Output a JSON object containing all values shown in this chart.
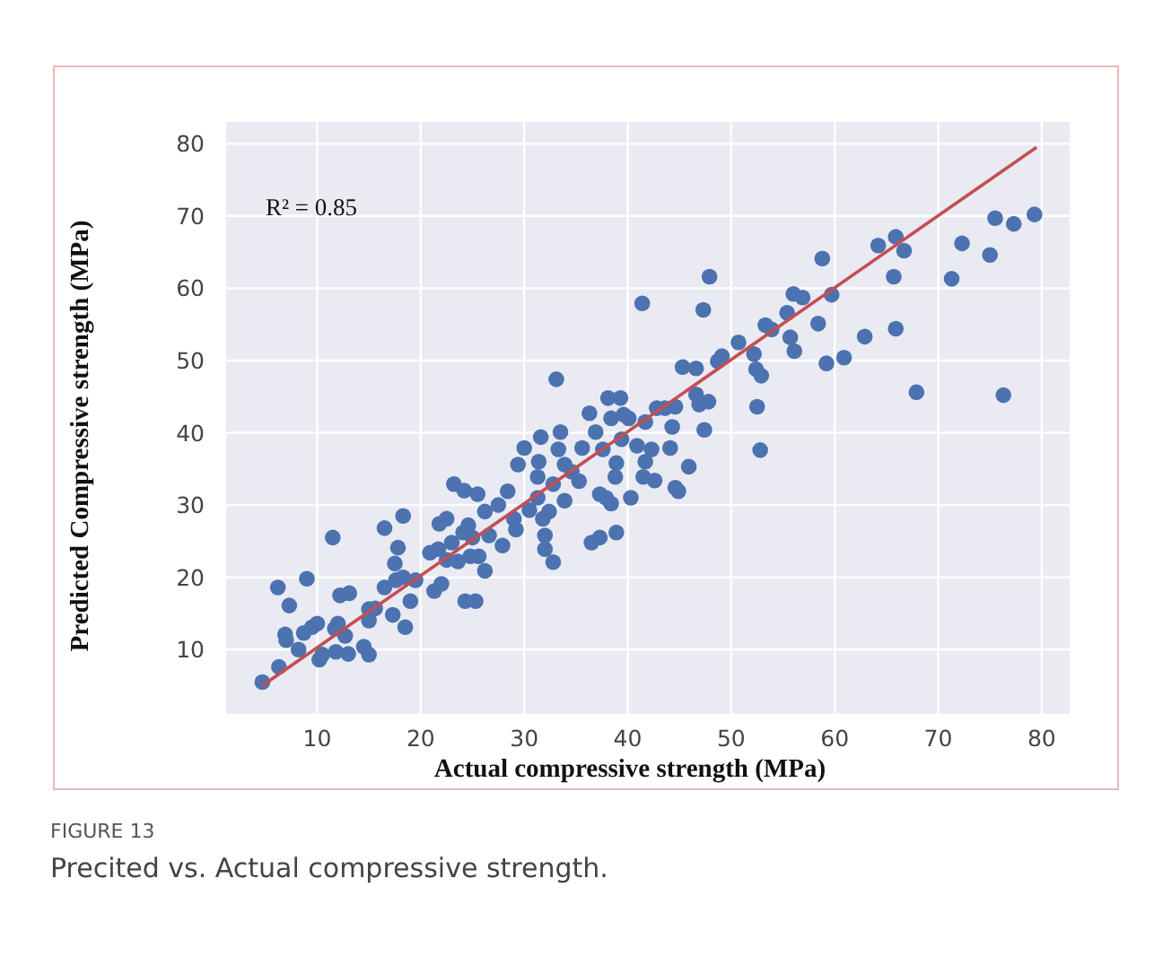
{
  "chart_data": {
    "type": "scatter",
    "xlabel": "Actual compressive strength (MPa)",
    "ylabel": "Predicted Compressive strength (MPa)",
    "annotations": [
      "R² = 0.85",
      "FIGURE 13",
      "Precited vs. Actual compressive strength."
    ],
    "xlim": [
      1.2,
      82.7
    ],
    "ylim": [
      1.1,
      83
    ],
    "xticks": [
      10,
      20,
      30,
      40,
      50,
      60,
      70,
      80
    ],
    "yticks": [
      10,
      20,
      30,
      40,
      50,
      60,
      70,
      80
    ],
    "grid": true,
    "series": [
      {
        "color": "#4c72b0",
        "marker": "circle",
        "x": [
          4.7,
          6.2,
          6.3,
          7.3,
          6.9,
          7.0,
          8.2,
          9.0,
          8.7,
          9.5,
          10.0,
          10.2,
          10.5,
          11.5,
          11.7,
          12.0,
          12.2,
          13.1,
          11.8,
          13.0,
          12.7,
          14.5,
          15.0,
          15.0,
          15.0,
          15.6,
          16.5,
          16.5,
          17.3,
          17.5,
          17.8,
          18.3,
          17.6,
          18.3,
          18.5,
          19.0,
          19.5,
          20.9,
          21.3,
          21.7,
          22.0,
          21.8,
          22.5,
          22.5,
          23.0,
          23.2,
          23.6,
          24.2,
          24.1,
          24.3,
          25.3,
          24.6,
          25.0,
          24.8,
          25.5,
          25.6,
          26.2,
          26.2,
          26.6,
          27.5,
          27.9,
          28.4,
          29.0,
          29.2,
          29.4,
          30.0,
          30.5,
          31.3,
          31.6,
          31.4,
          31.3,
          31.8,
          32.0,
          32.0,
          32.8,
          32.4,
          33.1,
          33.5,
          33.3,
          32.8,
          33.9,
          33.9,
          34.6,
          35.3,
          35.6,
          36.3,
          36.5,
          37.3,
          36.9,
          37.3,
          37.9,
          38.4,
          37.6,
          38.1,
          38.4,
          38.9,
          38.8,
          38.9,
          39.3,
          39.4,
          39.6,
          40.1,
          40.3,
          40.9,
          41.4,
          41.5,
          41.7,
          41.7,
          42.3,
          42.6,
          42.8,
          43.6,
          44.3,
          44.1,
          44.6,
          44.9,
          44.6,
          45.3,
          45.9,
          46.6,
          46.6,
          46.9,
          47.3,
          47.4,
          47.8,
          47.9,
          48.7,
          49.1,
          50.7,
          52.2,
          52.4,
          52.9,
          52.5,
          52.8,
          53.3,
          53.9,
          55.4,
          55.7,
          56.1,
          56.0,
          56.9,
          58.4,
          58.8,
          59.2,
          59.7,
          60.9,
          62.9,
          64.2,
          65.9,
          65.7,
          65.9,
          66.7,
          67.9,
          71.3,
          72.3,
          75.0,
          75.5,
          76.3,
          77.3,
          79.3
        ],
        "values": [
          5.5,
          18.6,
          7.6,
          16.1,
          12.1,
          11.3,
          10.0,
          19.8,
          12.3,
          13.1,
          13.6,
          8.6,
          9.3,
          25.5,
          12.9,
          13.6,
          17.5,
          17.8,
          9.7,
          9.4,
          11.9,
          10.4,
          9.3,
          15.6,
          14.0,
          15.7,
          26.8,
          18.6,
          14.8,
          21.9,
          24.1,
          28.5,
          19.6,
          20.0,
          13.1,
          16.7,
          19.6,
          23.4,
          18.1,
          23.9,
          19.1,
          27.4,
          28.1,
          22.4,
          24.8,
          32.9,
          22.2,
          32.0,
          26.2,
          16.7,
          16.7,
          27.2,
          25.5,
          22.9,
          31.5,
          22.9,
          20.9,
          29.1,
          25.8,
          30.0,
          24.4,
          31.9,
          28.1,
          26.6,
          35.6,
          37.9,
          29.3,
          31.0,
          39.4,
          36.0,
          33.9,
          28.1,
          25.8,
          23.9,
          22.1,
          29.1,
          47.4,
          40.1,
          37.7,
          32.9,
          30.6,
          35.6,
          34.6,
          33.3,
          37.9,
          42.7,
          24.8,
          25.5,
          40.1,
          31.5,
          31.0,
          30.2,
          37.7,
          44.8,
          42.0,
          26.2,
          33.9,
          35.8,
          44.8,
          39.1,
          42.5,
          42.0,
          31.0,
          38.2,
          57.9,
          33.9,
          41.5,
          36.0,
          37.7,
          33.4,
          43.4,
          43.4,
          40.8,
          37.9,
          32.4,
          31.9,
          43.6,
          49.1,
          35.3,
          48.9,
          45.3,
          43.9,
          57.0,
          40.4,
          44.3,
          61.6,
          49.9,
          50.6,
          52.5,
          50.9,
          48.8,
          47.9,
          43.6,
          37.6,
          54.9,
          54.3,
          56.6,
          53.2,
          51.3,
          59.2,
          58.7,
          55.1,
          64.1,
          49.6,
          59.1,
          50.4,
          53.3,
          65.9,
          67.1,
          61.6,
          54.4,
          65.2,
          45.6,
          61.3,
          66.2,
          64.6,
          69.7,
          45.2,
          68.9,
          70.2
        ]
      },
      {
        "type": "line",
        "color": "#c44e52",
        "line_style": "solid",
        "x": [
          4.7,
          79.5
        ],
        "values": [
          5.0,
          79.5
        ]
      }
    ]
  }
}
